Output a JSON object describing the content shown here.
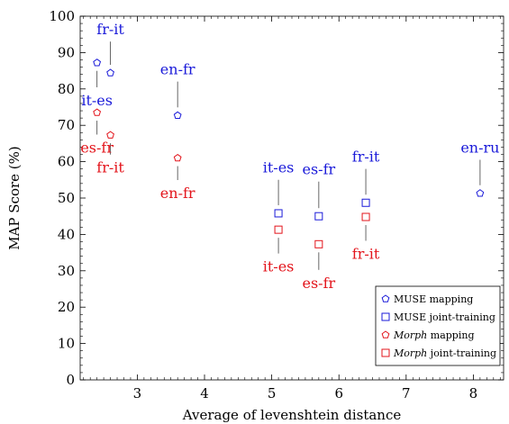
{
  "chart_data": {
    "type": "scatter",
    "xlabel": "Average of levenshtein distance",
    "ylabel": "MAP Score (%)",
    "xlim": [
      2.15,
      8.45
    ],
    "ylim": [
      0,
      100
    ],
    "x_ticks": [
      3,
      4,
      5,
      6,
      7,
      8
    ],
    "y_ticks": [
      0,
      10,
      20,
      30,
      40,
      50,
      60,
      70,
      80,
      90,
      100
    ],
    "grid": false,
    "legend_position": "bottom-right",
    "colors": {
      "muse": "#1a1ad9",
      "morph": "#e3141b",
      "axis": "#000000",
      "leader": "#555555"
    },
    "series": [
      {
        "name": "MUSE mapping",
        "legend_name": "MUSE",
        "legend_suffix": " mapping",
        "marker": "pentagon",
        "color_key": "muse",
        "points": [
          {
            "x": 2.4,
            "y": 87.2,
            "label": ""
          },
          {
            "x": 2.6,
            "y": 84.4,
            "label": "fr-it"
          },
          {
            "x": 3.6,
            "y": 72.7,
            "label": "en-fr"
          },
          {
            "x": 8.1,
            "y": 51.3,
            "label": "en-ru"
          }
        ]
      },
      {
        "name": "MUSE joint-training",
        "legend_name": "MUSE",
        "legend_suffix": " joint-training",
        "marker": "square",
        "color_key": "muse",
        "points": [
          {
            "x": 5.1,
            "y": 45.8,
            "label": "it-es"
          },
          {
            "x": 5.7,
            "y": 45.0,
            "label": "es-fr"
          },
          {
            "x": 6.4,
            "y": 48.7,
            "label": "fr-it"
          }
        ]
      },
      {
        "name": "Morph mapping",
        "legend_name": "Morph",
        "legend_suffix": " mapping",
        "marker": "pentagon",
        "color_key": "morph",
        "points": [
          {
            "x": 2.4,
            "y": 73.5,
            "label": "es-fr"
          },
          {
            "x": 2.6,
            "y": 67.3,
            "label": "fr-it"
          },
          {
            "x": 3.6,
            "y": 61.0,
            "label": "en-fr"
          }
        ]
      },
      {
        "name": "Morph joint-training",
        "legend_name": "Morph",
        "legend_suffix": " joint-training",
        "marker": "square",
        "color_key": "morph",
        "points": [
          {
            "x": 5.1,
            "y": 41.3,
            "label": "it-es"
          },
          {
            "x": 5.7,
            "y": 37.3,
            "label": "es-fr"
          },
          {
            "x": 6.4,
            "y": 44.8,
            "label": "fr-it"
          }
        ]
      }
    ],
    "annotations": [
      {
        "text": "fr-it",
        "color_key": "muse",
        "x": 2.6,
        "y": 95,
        "point_y": 84.4,
        "anchor": "middle"
      },
      {
        "text": "it-es",
        "color_key": "muse",
        "x": 2.4,
        "y": 75.5,
        "point_y": 87.2,
        "anchor": "middle"
      },
      {
        "text": "en-fr",
        "color_key": "muse",
        "x": 3.6,
        "y": 84,
        "point_y": 72.7,
        "anchor": "middle"
      },
      {
        "text": "it-es",
        "color_key": "muse",
        "x": 5.1,
        "y": 57,
        "point_y": 45.8,
        "anchor": "middle"
      },
      {
        "text": "es-fr",
        "color_key": "muse",
        "x": 5.7,
        "y": 56.5,
        "point_y": 45.0,
        "anchor": "middle"
      },
      {
        "text": "fr-it",
        "color_key": "muse",
        "x": 6.4,
        "y": 60,
        "point_y": 48.7,
        "anchor": "middle"
      },
      {
        "text": "en-ru",
        "color_key": "muse",
        "x": 8.1,
        "y": 62.5,
        "point_y": 51.3,
        "anchor": "middle"
      },
      {
        "text": "es-fr",
        "color_key": "morph",
        "x": 2.4,
        "y": 62.5,
        "point_y": 73.5,
        "anchor": "middle"
      },
      {
        "text": "fr-it",
        "color_key": "morph",
        "x": 2.6,
        "y": 57,
        "point_y": 67.3,
        "anchor": "middle"
      },
      {
        "text": "en-fr",
        "color_key": "morph",
        "x": 3.6,
        "y": 50,
        "point_y": 61.0,
        "anchor": "middle"
      },
      {
        "text": "it-es",
        "color_key": "morph",
        "x": 5.1,
        "y": 29.8,
        "point_y": 41.3,
        "anchor": "middle"
      },
      {
        "text": "es-fr",
        "color_key": "morph",
        "x": 5.7,
        "y": 25.3,
        "point_y": 37.3,
        "anchor": "middle"
      },
      {
        "text": "fr-it",
        "color_key": "morph",
        "x": 6.4,
        "y": 33.3,
        "point_y": 44.8,
        "anchor": "middle"
      }
    ]
  }
}
